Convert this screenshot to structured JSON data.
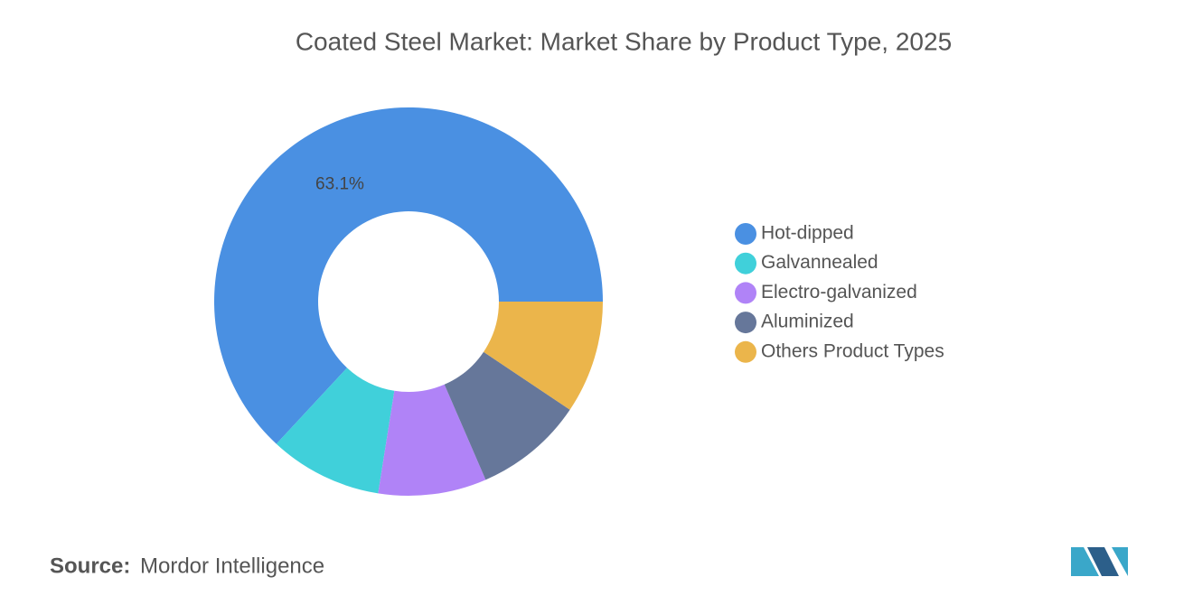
{
  "chart_data": {
    "type": "donut",
    "title": "Coated Steel Market: Market Share by Product Type, 2025",
    "categories": [
      "Hot-dipped",
      "Galvannealed",
      "Electro-galvanized",
      "Aluminized",
      "Others Product Types"
    ],
    "values": [
      63.1,
      9.4,
      9.0,
      9.1,
      9.4
    ],
    "value_labels": [
      "63.1%",
      null,
      null,
      null,
      null
    ],
    "colors": [
      "#4a90e2",
      "#40d0da",
      "#b083f7",
      "#66779a",
      "#ebb54b"
    ],
    "legend": "right"
  },
  "source_label": "Source:",
  "source": "Mordor Intelligence"
}
